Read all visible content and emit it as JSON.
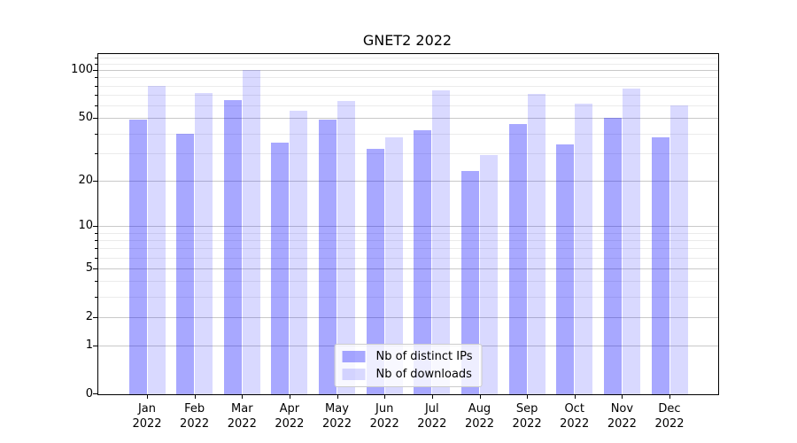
{
  "title": "GNET2 2022",
  "chart_data": {
    "type": "bar",
    "title": "GNET2 2022",
    "xlabel": "",
    "ylabel": "",
    "categories": [
      "Jan 2022",
      "Feb 2022",
      "Mar 2022",
      "Apr 2022",
      "May 2022",
      "Jun 2022",
      "Jul 2022",
      "Aug 2022",
      "Sep 2022",
      "Oct 2022",
      "Nov 2022",
      "Dec 2022"
    ],
    "series": [
      {
        "name": "Nb of distinct IPs",
        "color": "rgba(0,0,255,0.34)",
        "values": [
          49,
          40,
          65,
          35,
          49,
          32,
          42,
          23,
          46,
          34,
          50,
          38
        ]
      },
      {
        "name": "Nb of downloads",
        "color": "rgba(0,0,255,0.15)",
        "values": [
          80,
          72,
          100,
          56,
          64,
          38,
          75,
          29,
          71,
          62,
          77,
          60
        ]
      }
    ],
    "yscale": "log1p",
    "ylim": [
      0,
      126
    ],
    "yticks": [
      0,
      1,
      2,
      5,
      10,
      20,
      50,
      100
    ],
    "yticks_minor": [
      3,
      4,
      6,
      7,
      8,
      9,
      30,
      40,
      60,
      70,
      80,
      90,
      110,
      120
    ],
    "grid": true,
    "legend_position": "lower center",
    "colors": {
      "grid_major": "#c9c9c9",
      "grid_minor": "#ebebeb",
      "spine": "#000000",
      "text": "#000000"
    }
  }
}
